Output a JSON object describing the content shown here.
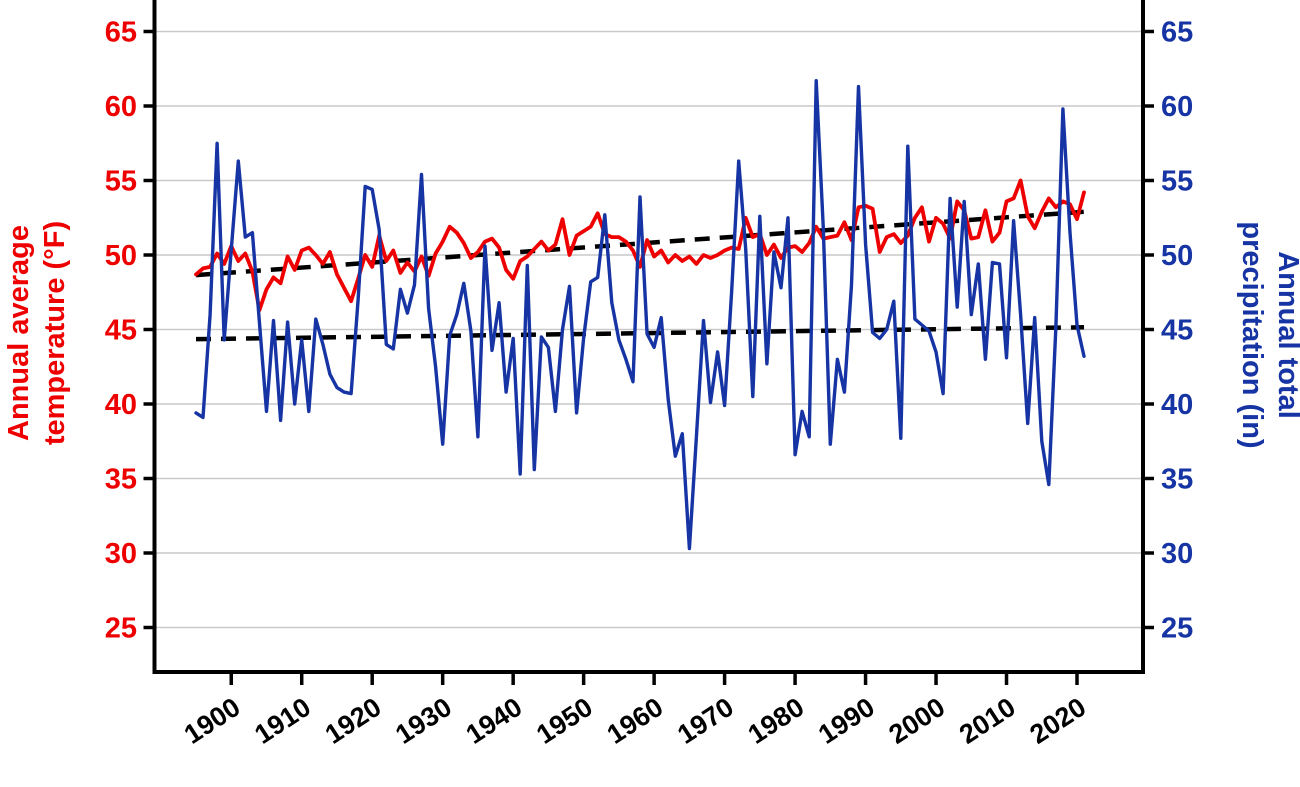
{
  "chart_data": {
    "type": "line",
    "title": "",
    "x_years": {
      "start": 1895,
      "end": 2021,
      "step": 1
    },
    "x_axis": {
      "tick_years": [
        1900,
        1910,
        1920,
        1930,
        1940,
        1950,
        1960,
        1970,
        1980,
        1990,
        2000,
        2010,
        2020
      ],
      "tick_label_rotation_deg": -33,
      "tick_label_color": "#000000"
    },
    "left_axis": {
      "title_line1": "Annual average",
      "title_line2": "temperature (°F)",
      "ticks": [
        25,
        30,
        35,
        40,
        45,
        50,
        55,
        60,
        65
      ],
      "range": [
        22.5,
        67.5
      ],
      "color": "#ee0000"
    },
    "right_axis": {
      "title_line1": "Annual total",
      "title_line2": "precipitation (in)",
      "ticks": [
        25,
        30,
        35,
        40,
        45,
        50,
        55,
        60,
        65
      ],
      "range": [
        22.5,
        67.5
      ],
      "color": "#1634a3"
    },
    "grid": {
      "horizontal": true,
      "vertical": false,
      "color": "#c9c9c9"
    },
    "legend": "none",
    "series": [
      {
        "name": "annual-average-temperature",
        "axis": "left",
        "color": "#ee0000",
        "style": "solid",
        "values": [
          48.7,
          49.1,
          49.2,
          50.1,
          49.4,
          50.6,
          49.6,
          50.1,
          48.9,
          46.3,
          47.7,
          48.5,
          48.1,
          49.9,
          49.0,
          50.3,
          50.5,
          50.0,
          49.4,
          50.2,
          48.7,
          47.8,
          46.9,
          48.4,
          50.0,
          49.2,
          51.3,
          49.6,
          50.3,
          48.8,
          49.5,
          48.9,
          49.9,
          48.6,
          50.1,
          50.9,
          51.9,
          51.5,
          50.8,
          49.8,
          50.2,
          50.9,
          51.1,
          50.5,
          49.0,
          48.4,
          49.6,
          49.9,
          50.4,
          50.9,
          50.3,
          50.7,
          52.4,
          50.0,
          51.3,
          51.6,
          51.9,
          52.8,
          51.4,
          51.2,
          51.2,
          50.9,
          50.3,
          49.2,
          51.0,
          49.9,
          50.3,
          49.5,
          50.0,
          49.6,
          49.9,
          49.4,
          50.0,
          49.8,
          50.0,
          50.3,
          50.5,
          50.4,
          52.5,
          51.2,
          51.4,
          50.0,
          50.7,
          49.8,
          50.5,
          50.6,
          50.2,
          50.8,
          51.9,
          51.1,
          51.2,
          51.3,
          52.2,
          51.0,
          53.2,
          53.3,
          53.1,
          50.2,
          51.2,
          51.4,
          50.8,
          51.3,
          52.5,
          53.2,
          50.9,
          52.5,
          52.1,
          51.1,
          53.6,
          53.0,
          51.1,
          51.2,
          53.0,
          50.9,
          51.5,
          53.6,
          53.8,
          55.0,
          52.6,
          51.8,
          52.9,
          53.8,
          53.2,
          53.6,
          53.4,
          52.4,
          54.2
        ]
      },
      {
        "name": "annual-total-precipitation",
        "axis": "right",
        "color": "#1634a3",
        "style": "solid",
        "values": [
          39.4,
          39.1,
          46.0,
          57.5,
          44.3,
          50.3,
          56.3,
          51.2,
          51.5,
          45.5,
          39.5,
          45.6,
          38.9,
          45.5,
          40.0,
          44.3,
          39.5,
          45.7,
          44.0,
          42.0,
          41.1,
          40.8,
          40.7,
          47.0,
          54.6,
          54.4,
          51.7,
          44.0,
          43.7,
          47.7,
          46.1,
          48.0,
          55.4,
          46.4,
          42.5,
          37.3,
          44.6,
          46.0,
          48.1,
          44.9,
          37.8,
          50.6,
          43.6,
          46.8,
          40.8,
          44.4,
          35.3,
          49.3,
          35.6,
          44.5,
          43.8,
          39.5,
          45.0,
          47.9,
          39.4,
          44.4,
          48.2,
          48.5,
          52.7,
          46.8,
          44.3,
          43.0,
          41.5,
          53.9,
          44.7,
          43.8,
          45.8,
          40.3,
          36.5,
          38.0,
          30.3,
          37.8,
          45.6,
          40.1,
          43.5,
          39.9,
          47.5,
          56.3,
          50.4,
          40.5,
          52.6,
          42.7,
          50.2,
          47.8,
          52.5,
          36.6,
          39.5,
          37.8,
          61.7,
          51.8,
          37.3,
          43.0,
          40.8,
          48.0,
          61.3,
          50.7,
          44.8,
          44.4,
          45.0,
          46.9,
          37.7,
          57.3,
          45.7,
          45.3,
          44.9,
          43.5,
          40.7,
          53.8,
          46.5,
          53.6,
          46.0,
          49.4,
          43.0,
          49.5,
          49.4,
          43.1,
          52.3,
          46.0,
          38.7,
          45.8,
          37.5,
          34.6,
          45.2,
          59.8,
          51.5,
          45.3,
          43.2
        ]
      }
    ],
    "trend_lines": [
      {
        "name": "temperature-trend",
        "color": "#000000",
        "style": "dashed",
        "start_year": 1895,
        "end_year": 2021,
        "start_value": 48.65,
        "end_value": 52.9
      },
      {
        "name": "precipitation-trend",
        "color": "#000000",
        "style": "dashed",
        "start_year": 1895,
        "end_year": 2021,
        "start_value": 44.35,
        "end_value": 45.15
      }
    ]
  }
}
